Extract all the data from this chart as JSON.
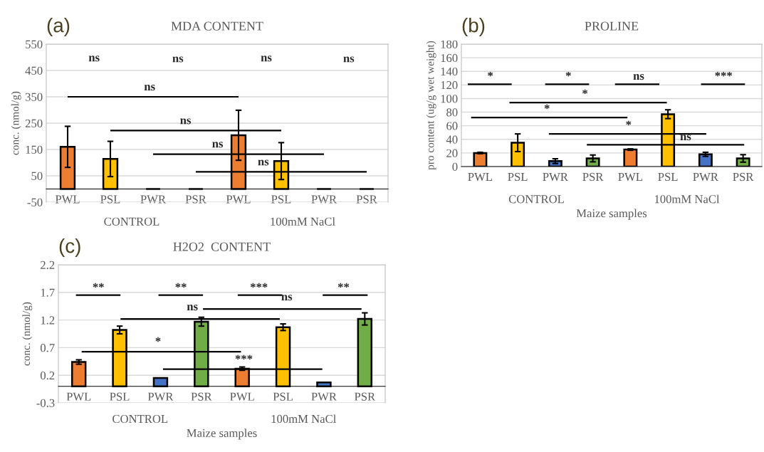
{
  "chart_data": [
    {
      "type": "bar",
      "title": "MDA CONTENT",
      "ylabel": "conc. (nmol/g)",
      "categories": [
        "PWL",
        "PSL",
        "PWR",
        "PSR",
        "PWL",
        "PSL",
        "PWR",
        "PSR"
      ],
      "values": [
        160,
        114,
        0,
        0,
        204,
        106,
        0,
        0
      ],
      "colors": [
        "#ed7d31",
        "#ffc000",
        "#000000",
        "#000000",
        "#ed7d31",
        "#ffc000",
        "#000000",
        "#000000"
      ],
      "errors": [
        78,
        67,
        null,
        null,
        95,
        70,
        null,
        null
      ],
      "ylim": [
        -50,
        550
      ],
      "yticks": [
        -50,
        50,
        150,
        250,
        350,
        450,
        550
      ],
      "grid": "y",
      "annotations": [
        "(a)",
        "CONTROL",
        "100mM NaCl",
        "ns",
        "ns",
        "ns",
        "ns",
        "ns",
        "ns",
        "ns",
        "ns"
      ]
    },
    {
      "type": "bar",
      "title": "PROLINE",
      "ylabel": "pro content (ug/g wet weight)",
      "xlabel": "Maize samples",
      "categories": [
        "PWL",
        "PSL",
        "PWR",
        "PSR",
        "PWL",
        "PSL",
        "PWR",
        "PSR"
      ],
      "values": [
        20,
        35,
        8,
        12,
        25,
        77,
        18,
        12
      ],
      "colors": [
        "#ed7d31",
        "#ffc000",
        "#4472c4",
        "#70ad47",
        "#ed7d31",
        "#ffc000",
        "#4472c4",
        "#70ad47"
      ],
      "errors": [
        1,
        13,
        3.5,
        5,
        1,
        6.5,
        3,
        5.5
      ],
      "ylim": [
        0,
        180
      ],
      "yticks": [
        0,
        20,
        40,
        60,
        80,
        100,
        120,
        140,
        160,
        180
      ],
      "grid": "y",
      "annotations": [
        "(b)",
        "CONTROL",
        "100mM NaCl",
        "*",
        "*",
        "ns",
        "***",
        "*",
        "*",
        "*",
        "ns"
      ]
    },
    {
      "type": "bar",
      "title": "H2O2  CONTENT",
      "ylabel": "conc. (nmol/g)",
      "xlabel": "Maize samples",
      "categories": [
        "PWL",
        "PSL",
        "PWR",
        "PSR",
        "PWL",
        "PSL",
        "PWR",
        "PSR"
      ],
      "values": [
        0.44,
        1.02,
        0.15,
        1.17,
        0.32,
        1.07,
        0.07,
        1.22
      ],
      "colors": [
        "#ed7d31",
        "#ffc000",
        "#4472c4",
        "#70ad47",
        "#ed7d31",
        "#ffc000",
        "#4472c4",
        "#70ad47"
      ],
      "errors": [
        0.04,
        0.07,
        null,
        0.08,
        0.03,
        0.06,
        null,
        0.11
      ],
      "ylim": [
        -0.3,
        2.2
      ],
      "yticks": [
        -0.3,
        0.2,
        0.7,
        1.2,
        1.7,
        2.2
      ],
      "grid": "y",
      "annotations": [
        "(c)",
        "CONTROL",
        "100mM NaCl",
        "**",
        "**",
        "***",
        "**",
        "ns",
        "ns",
        "*",
        "***"
      ]
    }
  ]
}
